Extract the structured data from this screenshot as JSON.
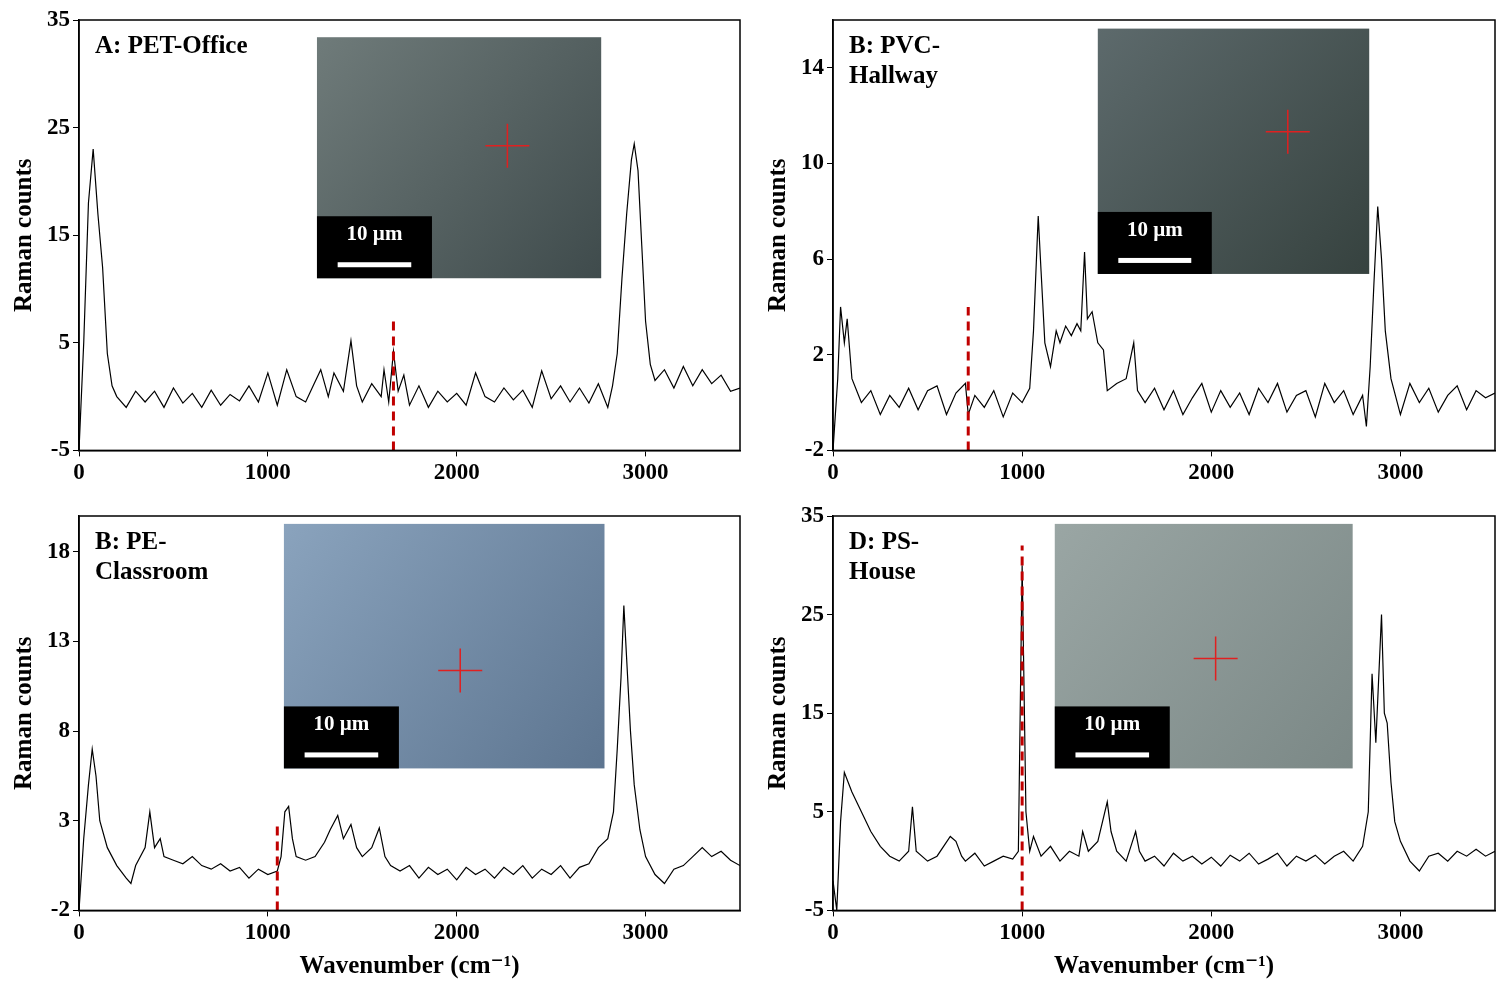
{
  "chart_data": [
    {
      "type": "line",
      "title": "A: PET-Office",
      "y_label": "Raman counts",
      "color": "#000000",
      "grid": false,
      "xlim": [
        0,
        3500
      ],
      "xticks": [
        0,
        1000,
        2000,
        3000
      ],
      "ylim": [
        -5,
        35
      ],
      "yticks": [
        -5,
        5,
        15,
        25,
        35
      ],
      "reference_line": {
        "x": 1665,
        "y": [
          -5,
          7
        ]
      },
      "inset_scale_bar": "10 µm",
      "x": [
        0,
        25,
        50,
        75,
        100,
        125,
        150,
        175,
        200,
        250,
        300,
        350,
        400,
        450,
        500,
        550,
        600,
        650,
        700,
        750,
        800,
        850,
        900,
        950,
        1000,
        1050,
        1100,
        1150,
        1200,
        1240,
        1280,
        1320,
        1350,
        1400,
        1440,
        1470,
        1500,
        1550,
        1600,
        1615,
        1640,
        1665,
        1690,
        1720,
        1750,
        1800,
        1850,
        1900,
        1950,
        2000,
        2050,
        2100,
        2150,
        2200,
        2250,
        2300,
        2350,
        2400,
        2450,
        2500,
        2550,
        2600,
        2650,
        2700,
        2750,
        2800,
        2825,
        2850,
        2875,
        2900,
        2925,
        2940,
        2960,
        2980,
        3000,
        3025,
        3050,
        3100,
        3150,
        3200,
        3250,
        3300,
        3350,
        3400,
        3450,
        3500
      ],
      "values": [
        -5,
        5,
        18,
        23,
        17,
        12,
        4,
        1,
        0,
        -1,
        0.5,
        -0.5,
        0.5,
        -1,
        0.8,
        -0.6,
        0.3,
        -1,
        0.6,
        -0.8,
        0.2,
        -0.4,
        1,
        -0.5,
        2.2,
        -0.8,
        2.5,
        0,
        -0.5,
        1,
        2.5,
        0,
        2.2,
        0.5,
        5.2,
        1,
        -0.5,
        1.2,
        0,
        2.5,
        -0.5,
        4.2,
        0.5,
        2,
        -0.8,
        1,
        -1,
        0.5,
        -0.5,
        0.3,
        -0.8,
        2.2,
        0,
        -0.5,
        0.8,
        -0.3,
        0.6,
        -1,
        2.4,
        -0.2,
        1,
        -0.5,
        0.8,
        -0.6,
        1.2,
        -1,
        1,
        4,
        11,
        17,
        22,
        23.5,
        21,
        14,
        7,
        3,
        1.5,
        2.5,
        0.8,
        2.8,
        1,
        2.5,
        1.2,
        2,
        0.5,
        0.8
      ]
    },
    {
      "type": "line",
      "title": "B: PVC-Hallway",
      "y_label": "Raman counts",
      "color": "#000000",
      "grid": false,
      "xlim": [
        0,
        3500
      ],
      "xticks": [
        0,
        1000,
        2000,
        3000
      ],
      "ylim": [
        -2,
        16
      ],
      "yticks": [
        -2,
        2,
        6,
        10,
        14
      ],
      "reference_line": {
        "x": 715,
        "y": [
          -2,
          4
        ]
      },
      "inset_scale_bar": "10 µm",
      "x": [
        0,
        25,
        40,
        60,
        75,
        100,
        150,
        200,
        250,
        300,
        350,
        400,
        450,
        500,
        550,
        600,
        650,
        700,
        715,
        750,
        800,
        850,
        900,
        950,
        1000,
        1040,
        1060,
        1085,
        1100,
        1120,
        1150,
        1180,
        1200,
        1230,
        1260,
        1290,
        1310,
        1330,
        1345,
        1370,
        1400,
        1430,
        1450,
        1500,
        1550,
        1590,
        1610,
        1650,
        1700,
        1750,
        1800,
        1850,
        1900,
        1950,
        2000,
        2050,
        2100,
        2150,
        2200,
        2250,
        2300,
        2350,
        2400,
        2450,
        2500,
        2550,
        2600,
        2650,
        2700,
        2750,
        2800,
        2820,
        2840,
        2860,
        2880,
        2900,
        2920,
        2950,
        3000,
        3050,
        3100,
        3150,
        3200,
        3250,
        3300,
        3350,
        3400,
        3450,
        3500
      ],
      "values": [
        -2,
        1,
        4,
        2.5,
        3.5,
        1,
        0,
        0.5,
        -0.5,
        0.3,
        -0.2,
        0.6,
        -0.3,
        0.5,
        0.7,
        -0.5,
        0.4,
        0.8,
        -0.5,
        0.3,
        -0.2,
        0.5,
        -0.6,
        0.4,
        0,
        0.6,
        3,
        7.8,
        5.5,
        2.5,
        1.5,
        3,
        2.5,
        3.2,
        2.8,
        3.3,
        3,
        6.3,
        3.5,
        3.8,
        2.5,
        2.2,
        0.5,
        0.8,
        1,
        2.5,
        0.5,
        0,
        0.6,
        -0.3,
        0.5,
        -0.5,
        0.2,
        0.8,
        -0.4,
        0.5,
        -0.2,
        0.4,
        -0.5,
        0.6,
        0,
        0.8,
        -0.4,
        0.3,
        0.5,
        -0.6,
        0.8,
        0,
        0.5,
        -0.5,
        0.3,
        -1,
        1.5,
        5,
        8.2,
        6,
        3,
        1,
        -0.5,
        0.8,
        0,
        0.6,
        -0.4,
        0.3,
        0.7,
        -0.3,
        0.5,
        0.2,
        0.4
      ]
    },
    {
      "type": "line",
      "title": "B: PE-Classroom",
      "y_label": "Raman counts",
      "x_label": "Wavenumber (cm⁻¹)",
      "color": "#000000",
      "grid": false,
      "xlim": [
        0,
        3500
      ],
      "xticks": [
        0,
        1000,
        2000,
        3000
      ],
      "ylim": [
        -2,
        20
      ],
      "yticks": [
        -2,
        3,
        8,
        13,
        18
      ],
      "reference_line": {
        "x": 1050,
        "y": [
          -2,
          3
        ]
      },
      "inset_scale_bar": "10 µm",
      "x": [
        0,
        25,
        50,
        70,
        90,
        110,
        150,
        200,
        250,
        275,
        300,
        350,
        375,
        400,
        430,
        450,
        500,
        550,
        600,
        650,
        700,
        750,
        800,
        850,
        900,
        950,
        1000,
        1050,
        1070,
        1090,
        1110,
        1130,
        1150,
        1200,
        1250,
        1300,
        1330,
        1370,
        1400,
        1440,
        1470,
        1500,
        1550,
        1590,
        1620,
        1650,
        1700,
        1750,
        1800,
        1850,
        1900,
        1950,
        2000,
        2050,
        2100,
        2150,
        2200,
        2250,
        2300,
        2350,
        2400,
        2450,
        2500,
        2550,
        2600,
        2650,
        2700,
        2750,
        2800,
        2830,
        2850,
        2870,
        2885,
        2900,
        2920,
        2940,
        2970,
        3000,
        3050,
        3100,
        3150,
        3200,
        3250,
        3300,
        3350,
        3400,
        3450,
        3500
      ],
      "values": [
        -2,
        2,
        5,
        7,
        5.5,
        3,
        1.5,
        0.5,
        -0.2,
        -0.5,
        0.5,
        1.5,
        3.5,
        1.5,
        2,
        1,
        0.8,
        0.6,
        1,
        0.5,
        0.3,
        0.6,
        0.2,
        0.4,
        -0.2,
        0.3,
        0,
        0.2,
        1,
        3.5,
        3.8,
        2,
        1,
        0.8,
        1,
        1.8,
        2.5,
        3.3,
        2,
        2.8,
        1.5,
        1,
        1.5,
        2.6,
        1,
        0.5,
        0.2,
        0.5,
        -0.2,
        0.4,
        0,
        0.3,
        -0.3,
        0.4,
        0,
        0.3,
        -0.2,
        0.4,
        0,
        0.5,
        -0.2,
        0.3,
        0,
        0.5,
        -0.2,
        0.4,
        0.6,
        1.5,
        2,
        3.5,
        7,
        11,
        15,
        12,
        8,
        5,
        2.5,
        1,
        0,
        -0.5,
        0.3,
        0.5,
        1,
        1.5,
        1,
        1.3,
        0.8,
        0.5
      ]
    },
    {
      "type": "line",
      "title": "D: PS-House",
      "y_label": "Raman counts",
      "x_label": "Wavenumber (cm⁻¹)",
      "color": "#000000",
      "grid": false,
      "xlim": [
        0,
        3500
      ],
      "xticks": [
        0,
        1000,
        2000,
        3000
      ],
      "ylim": [
        -5,
        35
      ],
      "yticks": [
        -5,
        5,
        15,
        25,
        35
      ],
      "reference_line": {
        "x": 1000,
        "y": [
          -5,
          32
        ]
      },
      "inset_scale_bar": "10 µm",
      "x": [
        0,
        20,
        40,
        60,
        80,
        100,
        150,
        200,
        250,
        300,
        350,
        400,
        420,
        440,
        500,
        550,
        620,
        650,
        680,
        700,
        750,
        800,
        850,
        900,
        950,
        980,
        1000,
        1020,
        1040,
        1060,
        1100,
        1150,
        1200,
        1250,
        1300,
        1320,
        1350,
        1400,
        1450,
        1470,
        1500,
        1550,
        1580,
        1600,
        1620,
        1650,
        1700,
        1750,
        1800,
        1850,
        1900,
        1950,
        2000,
        2050,
        2100,
        2150,
        2200,
        2250,
        2300,
        2350,
        2400,
        2450,
        2500,
        2550,
        2600,
        2650,
        2700,
        2750,
        2800,
        2830,
        2850,
        2870,
        2900,
        2915,
        2930,
        2950,
        2970,
        3000,
        3050,
        3100,
        3150,
        3200,
        3250,
        3300,
        3350,
        3400,
        3450,
        3500
      ],
      "values": [
        -2,
        -5,
        4,
        9,
        8,
        7,
        5,
        3,
        1.5,
        0.5,
        0,
        1,
        5.5,
        1,
        0,
        0.5,
        2.5,
        2,
        0.5,
        0,
        0.8,
        -0.5,
        0,
        0.5,
        0.2,
        1,
        30,
        5,
        1,
        2.5,
        0.5,
        1.5,
        0,
        1,
        0.5,
        3,
        1,
        2,
        6,
        3,
        1,
        0,
        1.8,
        3,
        1,
        0,
        0.5,
        -0.5,
        0.8,
        0,
        0.5,
        -0.3,
        0.4,
        -0.5,
        0.6,
        0,
        0.8,
        -0.3,
        0.2,
        0.8,
        -0.5,
        0.5,
        0,
        0.6,
        -0.3,
        0.5,
        1,
        0,
        1.5,
        5,
        19,
        12,
        25,
        15,
        14,
        8,
        4,
        2,
        0,
        -1,
        0.5,
        0.8,
        0,
        1,
        0.5,
        1.2,
        0.5,
        1
      ]
    }
  ]
}
